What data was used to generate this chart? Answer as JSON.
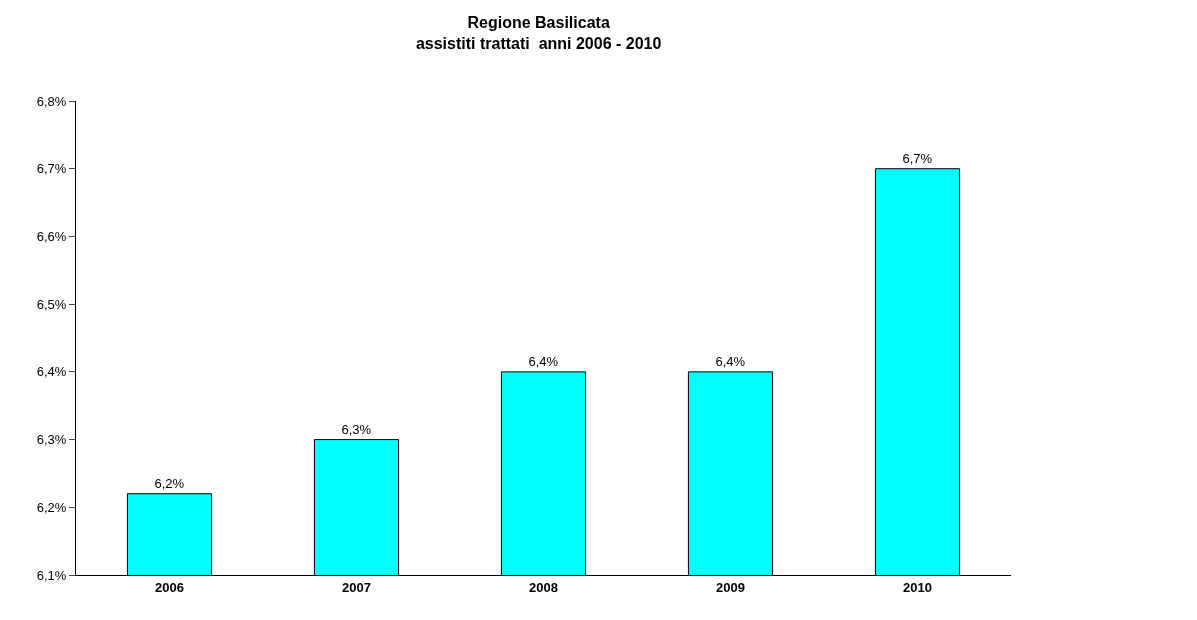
{
  "chart_data": {
    "type": "bar",
    "title": "Regione Basilicata\nassistiti trattati  anni 2006 - 2010",
    "categories": [
      "2006",
      "2007",
      "2008",
      "2009",
      "2010"
    ],
    "values": [
      6.22,
      6.3,
      6.4,
      6.4,
      6.7
    ],
    "value_labels": [
      "6,2%",
      "6,3%",
      "6,4%",
      "6,4%",
      "6,7%"
    ],
    "color": "#00ffff",
    "ylim": [
      6.1,
      6.8
    ],
    "yticks": [
      {
        "value": 6.1,
        "label": "6,1%"
      },
      {
        "value": 6.2,
        "label": "6,2%"
      },
      {
        "value": 6.3,
        "label": "6,3%"
      },
      {
        "value": 6.4,
        "label": "6,4%"
      },
      {
        "value": 6.5,
        "label": "6,5%"
      },
      {
        "value": 6.6,
        "label": "6,6%"
      },
      {
        "value": 6.7,
        "label": "6,7%"
      },
      {
        "value": 6.8,
        "label": "6,8%"
      }
    ],
    "grid": false,
    "legend": false
  }
}
